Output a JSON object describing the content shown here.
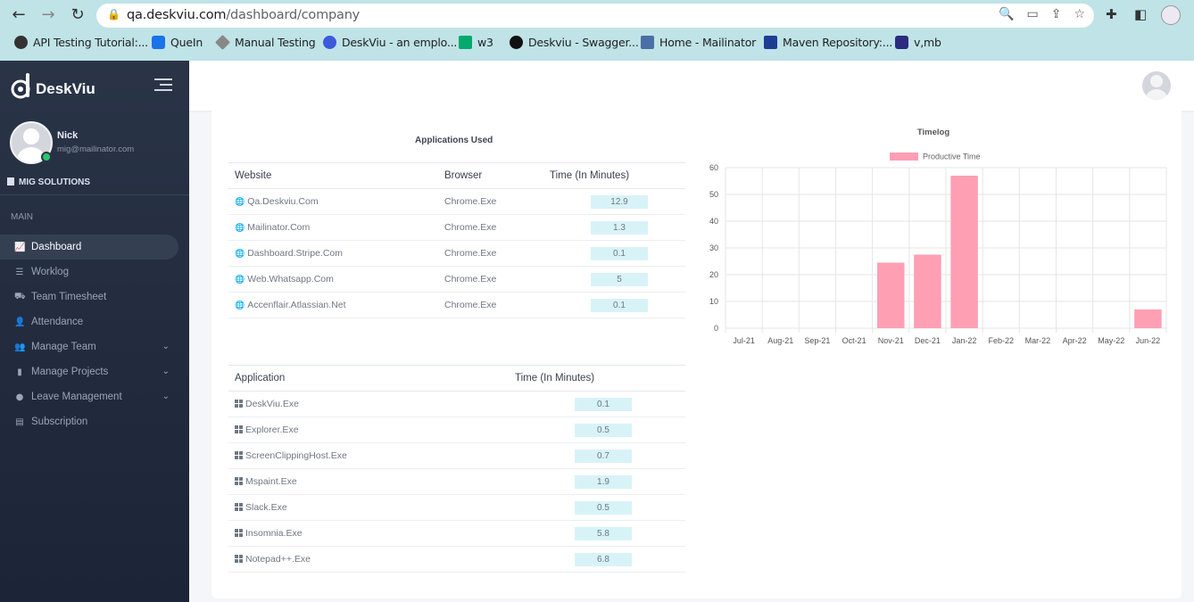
{
  "browser": {
    "url_host": "qa.deskviu.com",
    "url_path": "/dashboard/company",
    "bookmarks": [
      {
        "label": "API Testing Tutorial:...",
        "color": "#333333"
      },
      {
        "label": "QueIn",
        "color": "#1a73e8"
      },
      {
        "label": "Manual Testing",
        "color": "#888888"
      },
      {
        "label": "DeskViu - an emplo...",
        "color": "#3b5bdb"
      },
      {
        "label": "w3",
        "color": "#04aa6d"
      },
      {
        "label": "Deskviu - Swagger...",
        "color": "#111111"
      },
      {
        "label": "Home - Mailinator",
        "color": "#4a6fa5"
      },
      {
        "label": "Maven Repository:...",
        "color": "#1c3f94"
      },
      {
        "label": "v,mb",
        "color": "#2b2b80"
      }
    ]
  },
  "sidebar": {
    "brand": "DeskViu",
    "user_name": "Nick",
    "user_email": "mig@mailinator.com",
    "organization": "MIG SOLUTIONS",
    "section_label": "MAIN",
    "items": [
      {
        "label": "Dashboard",
        "icon": "chart-line-icon",
        "glyph": "📈",
        "active": true,
        "chevron": false
      },
      {
        "label": "Worklog",
        "icon": "list-icon",
        "glyph": "☰",
        "active": false,
        "chevron": false
      },
      {
        "label": "Team Timesheet",
        "icon": "car-icon",
        "glyph": "⛟",
        "active": false,
        "chevron": false
      },
      {
        "label": "Attendance",
        "icon": "user-check-icon",
        "glyph": "👤",
        "active": false,
        "chevron": false
      },
      {
        "label": "Manage Team",
        "icon": "users-icon",
        "glyph": "👥",
        "active": false,
        "chevron": true
      },
      {
        "label": "Manage Projects",
        "icon": "chart-bar-icon",
        "glyph": "▮",
        "active": false,
        "chevron": true
      },
      {
        "label": "Leave Management",
        "icon": "globe-icon",
        "glyph": "●",
        "active": false,
        "chevron": true
      },
      {
        "label": "Subscription",
        "icon": "file-icon",
        "glyph": "▤",
        "active": false,
        "chevron": false
      }
    ]
  },
  "apps_used": {
    "title": "Applications Used",
    "headers": [
      "Website",
      "Browser",
      "Time (In Minutes)"
    ],
    "rows": [
      {
        "website": "Qa.Deskviu.Com",
        "browser": "Chrome.Exe",
        "time": "12.9"
      },
      {
        "website": "Mailinator.Com",
        "browser": "Chrome.Exe",
        "time": "1.3"
      },
      {
        "website": "Dashboard.Stripe.Com",
        "browser": "Chrome.Exe",
        "time": "0.1"
      },
      {
        "website": "Web.Whatsapp.Com",
        "browser": "Chrome.Exe",
        "time": "5"
      },
      {
        "website": "Accenflair.Atlassian.Net",
        "browser": "Chrome.Exe",
        "time": "0.1"
      }
    ]
  },
  "applications": {
    "headers": [
      "Application",
      "Time (In Minutes)"
    ],
    "rows": [
      {
        "name": "DeskViu.Exe",
        "time": "0.1"
      },
      {
        "name": "Explorer.Exe",
        "time": "0.5"
      },
      {
        "name": "ScreenClippingHost.Exe",
        "time": "0.7"
      },
      {
        "name": "Mspaint.Exe",
        "time": "1.9"
      },
      {
        "name": "Slack.Exe",
        "time": "0.5"
      },
      {
        "name": "Insomnia.Exe",
        "time": "5.8"
      },
      {
        "name": "Notepad++.Exe",
        "time": "6.8"
      }
    ]
  },
  "chart_data": {
    "type": "bar",
    "title": "Timelog",
    "categories": [
      "Jul-21",
      "Aug-21",
      "Sep-21",
      "Oct-21",
      "Nov-21",
      "Dec-21",
      "Jan-22",
      "Feb-22",
      "Mar-22",
      "Apr-22",
      "May-22",
      "Jun-22"
    ],
    "series": [
      {
        "name": "Productive Time",
        "values": [
          0,
          0,
          0,
          0,
          24.5,
          27.5,
          57,
          0,
          0,
          0,
          0,
          7
        ],
        "color": "#ff9fb4"
      }
    ],
    "ylim": [
      0,
      60
    ],
    "yticks": [
      0,
      10,
      20,
      30,
      40,
      50,
      60
    ],
    "grid": true,
    "legend": "top"
  }
}
